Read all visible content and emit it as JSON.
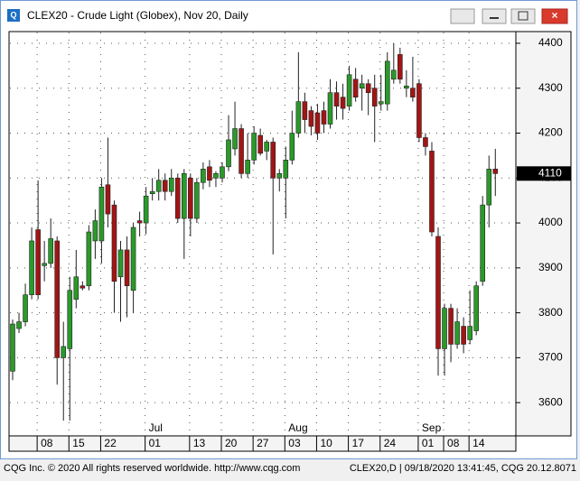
{
  "chart_data": {
    "type": "candlestick",
    "title": "CLEX20 - Crude Light (Globex), Nov 20, Daily",
    "footer_left": "CQG Inc. © 2020 All rights reserved worldwide. http://www.cqg.com",
    "footer_right": "CLEX20,D | 09/18/2020 13:41:45, CQG 20.12.8071",
    "categories": [
      null,
      null,
      null,
      null,
      "08",
      null,
      null,
      null,
      null,
      "15",
      null,
      null,
      null,
      null,
      "22",
      null,
      null,
      null,
      null,
      null,
      null,
      "01",
      null,
      null,
      null,
      null,
      null,
      null,
      "13",
      null,
      null,
      null,
      null,
      "20",
      null,
      null,
      null,
      null,
      "27",
      null,
      null,
      null,
      null,
      "03",
      null,
      null,
      null,
      null,
      "10",
      null,
      null,
      null,
      null,
      "17",
      null,
      null,
      null,
      null,
      "24",
      null,
      null,
      null,
      null,
      null,
      "01",
      null,
      null,
      null,
      "08",
      null,
      null,
      null,
      "14",
      null,
      null,
      null,
      null
    ],
    "months": [
      null,
      null,
      null,
      null,
      null,
      null,
      null,
      null,
      null,
      null,
      null,
      null,
      null,
      null,
      null,
      null,
      null,
      null,
      null,
      null,
      null,
      "Jul",
      null,
      null,
      null,
      null,
      null,
      null,
      null,
      null,
      null,
      null,
      null,
      null,
      null,
      null,
      null,
      null,
      null,
      null,
      null,
      null,
      null,
      "Aug",
      null,
      null,
      null,
      null,
      null,
      null,
      null,
      null,
      null,
      null,
      null,
      null,
      null,
      null,
      null,
      null,
      null,
      null,
      null,
      null,
      "Sep",
      null,
      null,
      null,
      null,
      null,
      null,
      null,
      null,
      null,
      null,
      null,
      null
    ],
    "open": [
      3670,
      3765,
      3780,
      3840,
      3985,
      3905,
      3910,
      3960,
      3700,
      3720,
      3830,
      3860,
      3860,
      3960,
      3960,
      4085,
      4040,
      3880,
      3940,
      3850,
      4005,
      4000,
      4065,
      4070,
      4095,
      4070,
      4100,
      4010,
      4100,
      4010,
      4090,
      4125,
      4100,
      4100,
      4125,
      4165,
      4210,
      4110,
      4140,
      4195,
      4160,
      4180,
      4100,
      4100,
      4140,
      4200,
      4270,
      4250,
      4245,
      4250,
      4220,
      4290,
      4280,
      4260,
      4320,
      4300,
      4310,
      4300,
      4265,
      4265,
      4320,
      4375,
      4300,
      4300,
      4310,
      4190,
      4160,
      3970,
      3720,
      3810,
      3730,
      3770,
      3740,
      3760,
      3870,
      4040,
      4120
    ],
    "high": [
      3785,
      3800,
      3865,
      3990,
      4095,
      3960,
      4010,
      3970,
      3780,
      3880,
      3940,
      3870,
      3995,
      4030,
      4100,
      4190,
      4050,
      3960,
      3970,
      4000,
      4025,
      4080,
      4100,
      4120,
      4110,
      4120,
      4110,
      4120,
      4110,
      4100,
      4135,
      4140,
      4115,
      4135,
      4240,
      4270,
      4220,
      4200,
      4215,
      4210,
      4185,
      4190,
      4120,
      4170,
      4250,
      4380,
      4290,
      4260,
      4265,
      4270,
      4320,
      4315,
      4310,
      4350,
      4345,
      4330,
      4320,
      4330,
      4330,
      4380,
      4400,
      4390,
      4340,
      4370,
      4320,
      4200,
      4180,
      3990,
      3820,
      3820,
      3810,
      3790,
      3850,
      3870,
      4060,
      4150,
      4165
    ],
    "low": [
      3650,
      3755,
      3770,
      3830,
      3830,
      3870,
      3900,
      3640,
      3560,
      3560,
      3810,
      3850,
      3850,
      3920,
      3910,
      3990,
      3800,
      3780,
      3790,
      3800,
      3970,
      3975,
      4050,
      4050,
      4050,
      4060,
      4000,
      3920,
      3970,
      4000,
      4075,
      4080,
      4080,
      4090,
      4115,
      4150,
      4100,
      4100,
      4130,
      4150,
      4140,
      3930,
      4070,
      4010,
      4130,
      4190,
      4200,
      4195,
      4185,
      4200,
      4210,
      4230,
      4230,
      4250,
      4270,
      4250,
      4240,
      4180,
      4250,
      4250,
      4310,
      4310,
      4280,
      4270,
      4180,
      4150,
      3970,
      3660,
      3660,
      3690,
      3720,
      3710,
      3730,
      3750,
      3860,
      3990,
      4060
    ],
    "close": [
      3775,
      3780,
      3840,
      3960,
      3840,
      3910,
      3965,
      3700,
      3725,
      3850,
      3880,
      3855,
      3980,
      4005,
      4080,
      4020,
      3870,
      3940,
      3860,
      3990,
      4000,
      4060,
      4070,
      4095,
      4070,
      4100,
      4010,
      4110,
      4010,
      4090,
      4120,
      4095,
      4110,
      4125,
      4185,
      4210,
      4110,
      4140,
      4200,
      4155,
      4180,
      4100,
      4110,
      4140,
      4200,
      4270,
      4230,
      4215,
      4200,
      4220,
      4290,
      4260,
      4255,
      4330,
      4280,
      4310,
      4290,
      4260,
      4270,
      4360,
      4340,
      4320,
      4305,
      4280,
      4190,
      4170,
      3980,
      3720,
      3810,
      3730,
      3780,
      3730,
      3770,
      3860,
      4040,
      4120,
      4110
    ],
    "up_color": "#2a9a2a",
    "down_color": "#a31515",
    "last_price": 4110,
    "ylim": [
      3526,
      4426
    ],
    "yticks": [
      3600,
      3700,
      3800,
      3900,
      4000,
      4100,
      4200,
      4300,
      4400
    ],
    "grid": true
  }
}
